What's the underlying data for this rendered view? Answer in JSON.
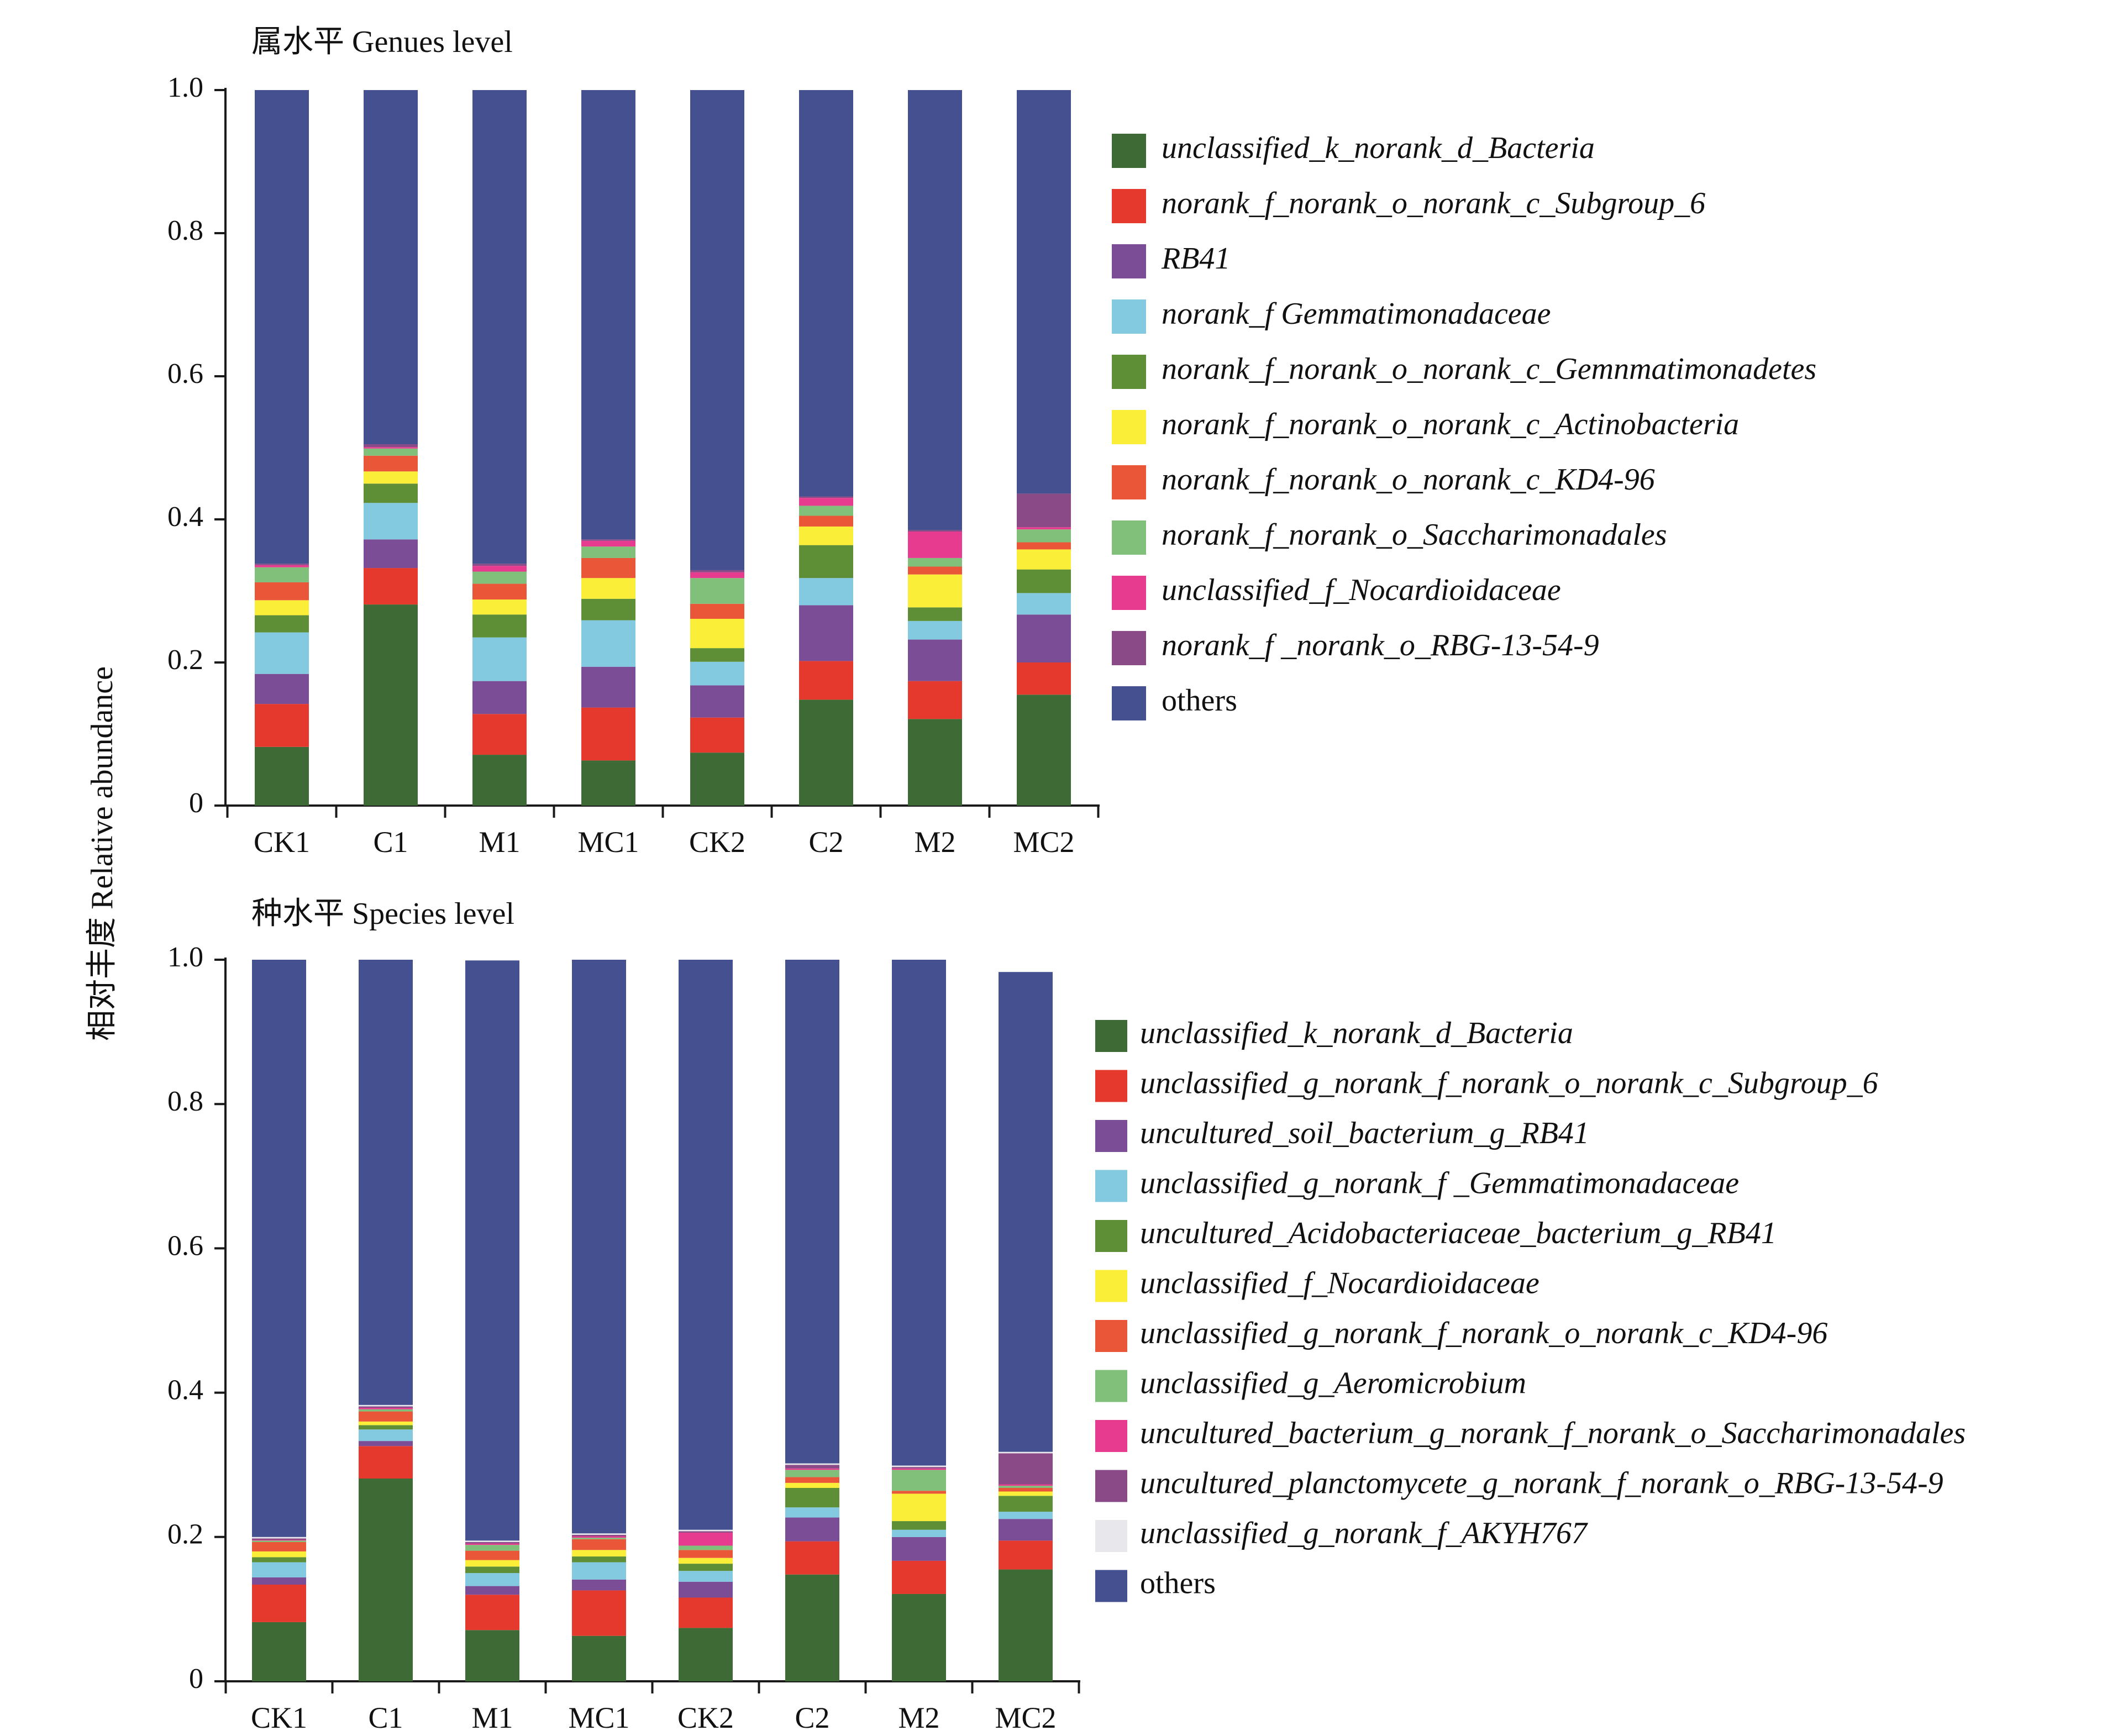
{
  "figure": {
    "ylabel": "相对丰度 Relative abundance"
  },
  "chart_data": [
    {
      "type": "bar",
      "stacked": true,
      "title": "属水平 Genues level",
      "ylim": [
        0,
        1.0
      ],
      "yticks": [
        "0",
        "0.2",
        "0.4",
        "0.6",
        "0.8",
        "1.0"
      ],
      "categories": [
        "CK1",
        "C1",
        "M1",
        "MC1",
        "CK2",
        "C2",
        "M2",
        "MC2"
      ],
      "legend_position": "right",
      "series": [
        {
          "name": "unclassified_k_norank_d_Bacteria",
          "color": "#3e6b35",
          "values": [
            0.082,
            0.281,
            0.071,
            0.063,
            0.074,
            0.148,
            0.121,
            0.155
          ]
        },
        {
          "name": "norank_f_norank_o_norank_c_Subgroup_6",
          "color": "#e5392e",
          "values": [
            0.06,
            0.051,
            0.057,
            0.074,
            0.049,
            0.054,
            0.053,
            0.045
          ]
        },
        {
          "name": "RB41",
          "color": "#7b4d96",
          "values": [
            0.042,
            0.04,
            0.046,
            0.057,
            0.045,
            0.078,
            0.058,
            0.067
          ]
        },
        {
          "name": "norank_f Gemmatimonadaceae",
          "color": "#83c9df",
          "values": [
            0.058,
            0.051,
            0.061,
            0.065,
            0.033,
            0.038,
            0.026,
            0.03
          ]
        },
        {
          "name": "norank_f_norank_o_norank_c_Gemnmatimonadetes",
          "color": "#5e8f36",
          "values": [
            0.024,
            0.027,
            0.032,
            0.03,
            0.019,
            0.046,
            0.019,
            0.033
          ]
        },
        {
          "name": "norank_f_norank_o_norank_c_Actinobacteria",
          "color": "#fbee38",
          "values": [
            0.021,
            0.017,
            0.021,
            0.029,
            0.041,
            0.026,
            0.046,
            0.028
          ]
        },
        {
          "name": "norank_f_norank_o_norank_c_KD4-96",
          "color": "#ea5638",
          "values": [
            0.025,
            0.022,
            0.022,
            0.028,
            0.021,
            0.015,
            0.011,
            0.01
          ]
        },
        {
          "name": "norank_f_norank_o_Saccharimonadales",
          "color": "#80c07a",
          "values": [
            0.021,
            0.01,
            0.017,
            0.016,
            0.036,
            0.014,
            0.012,
            0.018
          ]
        },
        {
          "name": "unclassified_f_Nocardioidaceae",
          "color": "#e73b8f",
          "values": [
            0.003,
            0.002,
            0.008,
            0.008,
            0.008,
            0.011,
            0.037,
            0.003
          ]
        },
        {
          "name": "norank_f _norank_o_RBG-13-54-9",
          "color": "#8a4a87",
          "values": [
            0.002,
            0.004,
            0.003,
            0.002,
            0.003,
            0.002,
            0.002,
            0.047
          ]
        },
        {
          "name": "others",
          "color": "#44508f",
          "values": [
            0.662,
            0.495,
            0.662,
            0.628,
            0.671,
            0.568,
            0.615,
            0.564
          ]
        }
      ]
    },
    {
      "type": "bar",
      "stacked": true,
      "title": "种水平 Species level",
      "ylim": [
        0,
        1.0
      ],
      "yticks": [
        "0",
        "0.2",
        "0.4",
        "0.6",
        "0.8",
        "1.0"
      ],
      "categories": [
        "CK1",
        "C1",
        "M1",
        "MC1",
        "CK2",
        "C2",
        "M2",
        "MC2"
      ],
      "legend_position": "right",
      "series": [
        {
          "name": "unclassified_k_norank_d_Bacteria",
          "color": "#3e6b35",
          "values": [
            0.082,
            0.281,
            0.071,
            0.063,
            0.074,
            0.148,
            0.121,
            0.155
          ]
        },
        {
          "name": "unclassified_g_norank_f_norank_o_norank_c_Subgroup_6",
          "color": "#e5392e",
          "values": [
            0.052,
            0.045,
            0.049,
            0.063,
            0.042,
            0.046,
            0.046,
            0.04
          ]
        },
        {
          "name": "uncultured_soil_bacterium_g_RB41",
          "color": "#7b4d96",
          "values": [
            0.01,
            0.007,
            0.012,
            0.015,
            0.022,
            0.033,
            0.033,
            0.03
          ]
        },
        {
          "name": "unclassified_g_norank_f _Gemmatimonadaceae",
          "color": "#83c9df",
          "values": [
            0.021,
            0.016,
            0.018,
            0.024,
            0.015,
            0.014,
            0.01,
            0.01
          ]
        },
        {
          "name": "uncultured_Acidobacteriaceae_bacterium_g_RB41",
          "color": "#5e8f36",
          "values": [
            0.007,
            0.006,
            0.009,
            0.008,
            0.01,
            0.027,
            0.012,
            0.022
          ]
        },
        {
          "name": "unclassified_f_Nocardioidaceae",
          "color": "#fbee38",
          "values": [
            0.008,
            0.005,
            0.009,
            0.009,
            0.008,
            0.007,
            0.038,
            0.006
          ]
        },
        {
          "name": "unclassified_g_norank_f_norank_o_norank_c_KD4-96",
          "color": "#ea5638",
          "values": [
            0.013,
            0.014,
            0.013,
            0.015,
            0.011,
            0.008,
            0.004,
            0.005
          ]
        },
        {
          "name": "unclassified_g_Aeromicrobium",
          "color": "#80c07a",
          "values": [
            0.002,
            0.003,
            0.008,
            0.002,
            0.006,
            0.01,
            0.029,
            0.003
          ]
        },
        {
          "name": "uncultured_bacterium_g_norank_f_norank_o_Saccharimonadales",
          "color": "#e73b8f",
          "values": [
            0.001,
            0.002,
            0.002,
            0.002,
            0.018,
            0.002,
            0.002,
            0.002
          ]
        },
        {
          "name": "uncultured_planctomycete_g_norank_f_norank_o_RBG-13-54-9",
          "color": "#8a4a87",
          "values": [
            0.002,
            0.002,
            0.002,
            0.002,
            0.002,
            0.005,
            0.002,
            0.043
          ]
        },
        {
          "name": "unclassified_g_norank_f_AKYH767",
          "color": "#e8e8ec",
          "values": [
            0.002,
            0.002,
            0.002,
            0.002,
            0.002,
            0.002,
            0.002,
            0.002
          ]
        },
        {
          "name": "others",
          "color": "#44508f",
          "values": [
            0.8,
            0.617,
            0.804,
            0.795,
            0.79,
            0.698,
            0.701,
            0.665
          ]
        }
      ]
    }
  ]
}
